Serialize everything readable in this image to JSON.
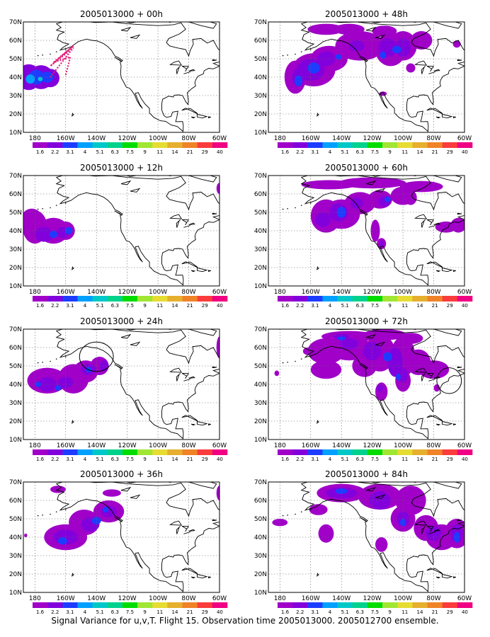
{
  "caption": "Signal Variance for u,v,T. Flight 15. Observation time 2005013000. 2005012700 ensemble.",
  "x_ticks": [
    "180",
    "160W",
    "140W",
    "120W",
    "100W",
    "80W",
    "60W"
  ],
  "y_ticks": [
    "70N",
    "60N",
    "50N",
    "40N",
    "30N",
    "20N",
    "10N"
  ],
  "colorbar": {
    "labels": [
      "1.6",
      "2.2",
      "3.1",
      "4",
      "5.1",
      "6.3",
      "7.5",
      "9",
      "11",
      "14",
      "21",
      "29",
      "40"
    ],
    "colors": [
      "#a000c8",
      "#8200dc",
      "#1e3cff",
      "#00a0ff",
      "#00c8c8",
      "#00d28c",
      "#00dc00",
      "#a0e632",
      "#e6dc32",
      "#e6af2d",
      "#f08228",
      "#fa3c3c",
      "#f00082"
    ]
  },
  "panels": [
    {
      "title": "2005013000 + 00h",
      "lead_hours": 0,
      "flight_track": true,
      "target_circle": false
    },
    {
      "title": "2005013000 + 48h",
      "lead_hours": 48,
      "flight_track": false,
      "target_circle": false
    },
    {
      "title": "2005013000 + 12h",
      "lead_hours": 12,
      "flight_track": false,
      "target_circle": false
    },
    {
      "title": "2005013000 + 60h",
      "lead_hours": 60,
      "flight_track": false,
      "target_circle": false
    },
    {
      "title": "2005013000 + 24h",
      "lead_hours": 24,
      "flight_track": false,
      "target_circle": true
    },
    {
      "title": "2005013000 + 72h",
      "lead_hours": 72,
      "flight_track": false,
      "target_circle": true
    },
    {
      "title": "2005013000 + 36h",
      "lead_hours": 36,
      "flight_track": false,
      "target_circle": false
    },
    {
      "title": "2005013000 + 84h",
      "lead_hours": 84,
      "flight_track": false,
      "target_circle": false
    }
  ]
}
